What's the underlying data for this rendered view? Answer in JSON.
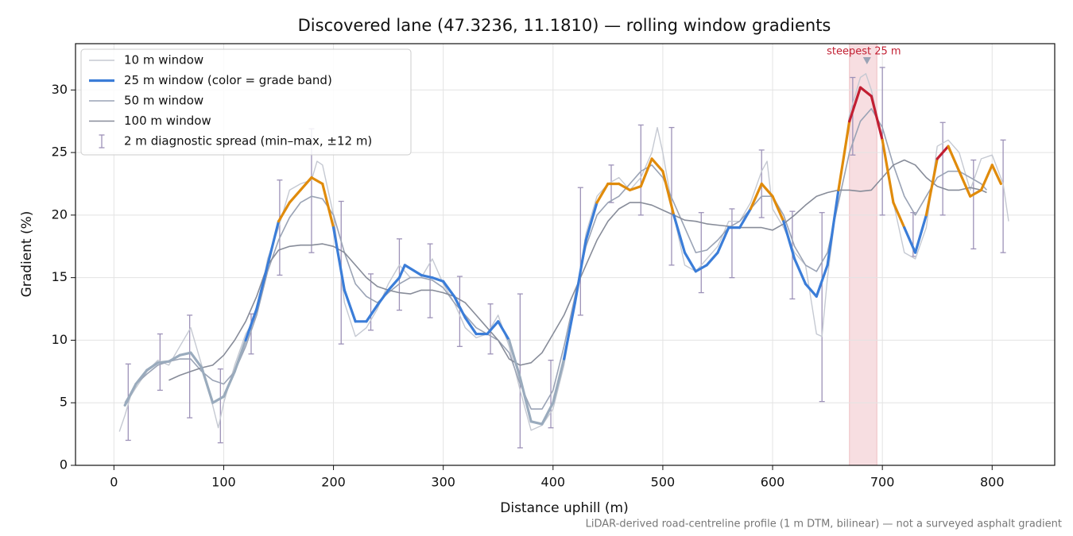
{
  "chart_data": {
    "type": "line",
    "title": "Discovered lane (47.3236, 11.1810) — rolling window gradients",
    "x_label": "Distance uphill (m)",
    "y_label": "Gradient (%)",
    "footnote": "LiDAR-derived road-centreline profile (1 m DTM, bilinear) — not a surveyed asphalt gradient",
    "xlim": [
      -35,
      857
    ],
    "ylim": [
      0,
      33.7
    ],
    "xticks": [
      0,
      100,
      200,
      300,
      400,
      500,
      600,
      700,
      800
    ],
    "yticks": [
      0,
      5,
      10,
      15,
      20,
      25,
      30
    ],
    "grid": true,
    "legend": "upper left",
    "series": [
      {
        "name": "10 m window",
        "color": "#c5c9d2",
        "x": [
          5,
          10,
          15,
          20,
          30,
          40,
          50,
          60,
          70,
          80,
          90,
          95,
          100,
          110,
          120,
          130,
          140,
          150,
          160,
          170,
          180,
          185,
          190,
          200,
          210,
          220,
          230,
          240,
          250,
          260,
          270,
          280,
          290,
          300,
          310,
          320,
          330,
          340,
          350,
          360,
          370,
          380,
          390,
          400,
          410,
          420,
          430,
          440,
          450,
          460,
          470,
          480,
          490,
          495,
          500,
          510,
          520,
          530,
          540,
          550,
          560,
          570,
          580,
          590,
          595,
          600,
          610,
          620,
          630,
          640,
          645,
          650,
          660,
          670,
          680,
          685,
          690,
          700,
          710,
          720,
          730,
          740,
          750,
          760,
          770,
          780,
          790,
          800,
          810,
          815
        ],
        "values": [
          2.7,
          4,
          5.5,
          6.2,
          7.5,
          8.4,
          8.0,
          9.5,
          11.0,
          8.0,
          4.8,
          3.0,
          5.0,
          8.0,
          10.5,
          12.0,
          16.5,
          19.0,
          22.0,
          22.5,
          22.8,
          24.3,
          24.0,
          20.0,
          13.0,
          10.3,
          11.0,
          12.5,
          14.5,
          16.0,
          15.0,
          15.0,
          16.5,
          14.5,
          13.0,
          11.0,
          10.2,
          10.5,
          12.0,
          9.5,
          6.0,
          2.8,
          3.2,
          4.5,
          8.0,
          13.0,
          18.5,
          21.5,
          22.5,
          23.0,
          22.0,
          23.0,
          25.0,
          27.0,
          25.0,
          20.0,
          16.0,
          15.5,
          16.5,
          17.5,
          19.5,
          19.5,
          21.0,
          23.5,
          24.3,
          20.5,
          19.0,
          17.0,
          16.0,
          10.5,
          10.3,
          15.0,
          22.0,
          28.0,
          31.0,
          31.3,
          30.0,
          26.0,
          21.0,
          17.0,
          16.5,
          19.0,
          25.5,
          26.0,
          25.0,
          22.0,
          24.5,
          24.8,
          22.5,
          19.5
        ]
      },
      {
        "name": "25 m window (color = grade band)",
        "color": "#3b7dd8",
        "color_bands": [
          {
            "below": 10,
            "color": "#9aabbd"
          },
          {
            "below": 20,
            "color": "#3b7dd8"
          },
          {
            "below": 25,
            "color": "#e08b0b"
          },
          {
            "below": null,
            "color": "#c21f32"
          }
        ],
        "x": [
          10,
          20,
          30,
          40,
          50,
          60,
          70,
          80,
          90,
          100,
          110,
          120,
          130,
          140,
          150,
          160,
          170,
          180,
          190,
          200,
          210,
          220,
          230,
          240,
          250,
          260,
          265,
          280,
          290,
          300,
          310,
          320,
          330,
          340,
          350,
          360,
          370,
          380,
          390,
          400,
          410,
          420,
          430,
          440,
          450,
          460,
          470,
          480,
          490,
          500,
          510,
          520,
          530,
          540,
          550,
          560,
          570,
          580,
          590,
          600,
          610,
          620,
          630,
          640,
          650,
          660,
          670,
          680,
          690,
          700,
          710,
          720,
          730,
          740,
          750,
          760,
          770,
          780,
          790,
          800,
          808
        ],
        "values": [
          4.8,
          6.5,
          7.6,
          8.2,
          8.3,
          8.8,
          9.0,
          7.8,
          5.0,
          5.5,
          7.5,
          10.0,
          12.5,
          16.0,
          19.5,
          21.0,
          22.0,
          23.0,
          22.5,
          19.0,
          14.0,
          11.5,
          11.5,
          12.8,
          14.0,
          15.0,
          16.0,
          15.2,
          15.0,
          14.7,
          13.5,
          11.8,
          10.5,
          10.5,
          11.5,
          10.0,
          7.0,
          3.5,
          3.3,
          5.0,
          8.5,
          13.0,
          18.0,
          21.0,
          22.5,
          22.5,
          22.0,
          22.3,
          24.5,
          23.5,
          20.0,
          17.0,
          15.5,
          16.0,
          17.0,
          19.0,
          19.0,
          20.5,
          22.5,
          21.5,
          19.5,
          16.5,
          14.5,
          13.5,
          16.0,
          22.0,
          27.5,
          30.2,
          29.5,
          26.0,
          21.0,
          19.0,
          17.0,
          20.0,
          24.5,
          25.5,
          23.5,
          21.5,
          22.0,
          24.0,
          22.5
        ]
      },
      {
        "name": "50 m window",
        "color": "#9aa3b5",
        "x": [
          10,
          20,
          30,
          40,
          50,
          60,
          70,
          80,
          90,
          100,
          110,
          120,
          130,
          140,
          150,
          160,
          170,
          180,
          190,
          200,
          210,
          220,
          230,
          240,
          250,
          260,
          270,
          280,
          290,
          300,
          310,
          320,
          330,
          340,
          350,
          360,
          370,
          380,
          390,
          400,
          410,
          420,
          430,
          440,
          450,
          460,
          470,
          480,
          490,
          500,
          510,
          520,
          530,
          540,
          550,
          560,
          570,
          580,
          590,
          600,
          610,
          620,
          630,
          640,
          650,
          660,
          670,
          680,
          690,
          700,
          710,
          720,
          730,
          740,
          750,
          760,
          770,
          780,
          790,
          795
        ],
        "values": [
          5.0,
          6.5,
          7.3,
          8.0,
          8.3,
          8.5,
          8.5,
          7.5,
          6.8,
          6.5,
          7.5,
          9.5,
          12.0,
          15.5,
          18.0,
          19.8,
          21.0,
          21.5,
          21.3,
          20.0,
          17.0,
          14.5,
          13.5,
          13.0,
          13.8,
          14.5,
          15.0,
          15.0,
          14.8,
          14.2,
          13.0,
          12.0,
          11.0,
          10.5,
          10.0,
          9.0,
          6.5,
          4.5,
          4.5,
          6.0,
          9.5,
          13.5,
          17.5,
          20.0,
          21.0,
          21.5,
          22.5,
          23.5,
          24.0,
          23.0,
          21.0,
          19.0,
          17.0,
          17.2,
          18.0,
          19.0,
          19.5,
          20.5,
          21.5,
          21.5,
          20.0,
          17.5,
          16.0,
          15.5,
          17.0,
          21.0,
          25.0,
          27.5,
          28.5,
          27.0,
          24.0,
          21.5,
          20.0,
          21.5,
          23.0,
          23.5,
          23.5,
          23.0,
          22.5,
          22.0
        ]
      },
      {
        "name": "100 m window",
        "color": "#878c99",
        "x": [
          50,
          60,
          70,
          80,
          90,
          100,
          110,
          120,
          130,
          140,
          150,
          160,
          170,
          180,
          190,
          200,
          210,
          220,
          230,
          240,
          250,
          260,
          270,
          280,
          290,
          300,
          310,
          320,
          330,
          340,
          350,
          360,
          370,
          380,
          390,
          400,
          410,
          420,
          430,
          440,
          450,
          460,
          470,
          480,
          490,
          500,
          510,
          520,
          530,
          540,
          550,
          560,
          570,
          580,
          590,
          600,
          610,
          620,
          630,
          640,
          650,
          660,
          670,
          680,
          690,
          700,
          710,
          720,
          730,
          740,
          750,
          760,
          770,
          780,
          790,
          795
        ],
        "values": [
          6.8,
          7.2,
          7.5,
          7.8,
          8.0,
          8.8,
          10.0,
          11.5,
          13.5,
          16.0,
          17.2,
          17.5,
          17.6,
          17.6,
          17.7,
          17.5,
          17.0,
          16.0,
          15.0,
          14.3,
          14.0,
          13.8,
          13.7,
          14.0,
          14.0,
          13.8,
          13.5,
          13.0,
          12.0,
          11.0,
          10.0,
          8.5,
          8.0,
          8.2,
          9.0,
          10.5,
          12.0,
          14.0,
          16.0,
          18.0,
          19.5,
          20.5,
          21.0,
          21.0,
          20.8,
          20.4,
          20.0,
          19.6,
          19.5,
          19.3,
          19.2,
          19.1,
          19.0,
          19.0,
          19.0,
          18.8,
          19.3,
          20.0,
          20.8,
          21.5,
          21.8,
          22.0,
          22.0,
          21.9,
          22.0,
          23.0,
          24.0,
          24.4,
          24.0,
          23.0,
          22.3,
          22.0,
          22.0,
          22.2,
          22.0,
          21.8
        ]
      }
    ],
    "spread": {
      "name": "2 m diagnostic spread (min–max, ±12 m)",
      "color": "#9d92b8",
      "x": [
        13,
        42,
        69,
        97,
        125,
        151,
        180,
        207,
        234,
        260,
        288,
        315,
        343,
        370,
        398,
        425,
        453,
        480,
        508,
        535,
        563,
        590,
        618,
        645,
        673,
        700,
        728,
        755,
        783,
        810
      ],
      "low": [
        2.0,
        6.0,
        3.8,
        1.8,
        8.9,
        15.2,
        17.0,
        9.7,
        10.8,
        12.4,
        11.8,
        9.5,
        8.9,
        1.4,
        3.0,
        12.0,
        21.0,
        20.0,
        16.0,
        13.8,
        15.0,
        19.8,
        13.3,
        5.1,
        24.8,
        20.0,
        16.7,
        20.0,
        17.3,
        17.0
      ],
      "high": [
        8.1,
        10.5,
        12.0,
        7.7,
        12.1,
        22.8,
        26.9,
        21.1,
        15.3,
        18.1,
        17.7,
        15.1,
        12.9,
        13.7,
        8.4,
        22.2,
        24.0,
        27.2,
        27.0,
        20.2,
        20.5,
        25.2,
        20.3,
        20.2,
        31.0,
        31.8,
        20.2,
        27.4,
        24.4,
        26.0
      ]
    },
    "highlight": {
      "xlim": [
        670,
        695
      ],
      "color": "#e8a0a8",
      "label": "steepest 25 m",
      "label_color": "#c21f32",
      "marker": {
        "x": 686,
        "y": 32.3
      }
    }
  }
}
